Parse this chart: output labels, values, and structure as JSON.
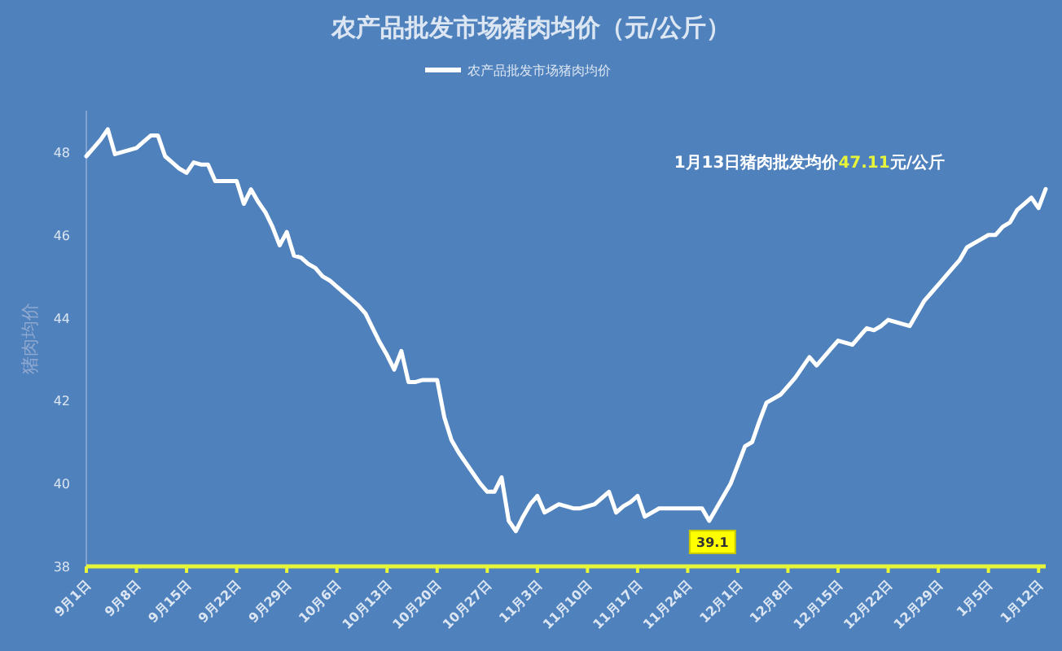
{
  "chart_data": {
    "type": "line",
    "title": "农产品批发市场猪肉均价（元/公斤）",
    "ylabel": "猪肉均价",
    "legend": "top",
    "categories": [
      "9月1日",
      null,
      null,
      null,
      null,
      null,
      null,
      "9月8日",
      null,
      null,
      null,
      null,
      null,
      null,
      "9月15日",
      null,
      null,
      null,
      null,
      null,
      null,
      "9月22日",
      null,
      null,
      null,
      null,
      null,
      null,
      "9月29日",
      null,
      null,
      null,
      null,
      null,
      null,
      "10月6日",
      null,
      null,
      null,
      null,
      null,
      null,
      "10月13日",
      null,
      null,
      null,
      null,
      null,
      null,
      "10月20日",
      null,
      null,
      null,
      null,
      null,
      null,
      "10月27日",
      null,
      null,
      null,
      null,
      null,
      null,
      "11月3日",
      null,
      null,
      null,
      null,
      null,
      null,
      "11月10日",
      null,
      null,
      null,
      null,
      null,
      null,
      "11月17日",
      null,
      null,
      null,
      null,
      null,
      null,
      "11月24日",
      null,
      null,
      null,
      null,
      null,
      null,
      "12月1日",
      null,
      null,
      null,
      null,
      null,
      null,
      "12月8日",
      null,
      null,
      null,
      null,
      null,
      null,
      "12月15日",
      null,
      null,
      null,
      null,
      null,
      null,
      "12月22日",
      null,
      null,
      null,
      null,
      null,
      null,
      "12月29日",
      null,
      null,
      null,
      null,
      null,
      null,
      "1月5日",
      null,
      null,
      null,
      null,
      null,
      null,
      "1月12日",
      null
    ],
    "series": [
      {
        "name": "农产品批发市场猪肉均价",
        "color": "#ffffff",
        "values": [
          47.9,
          48.1,
          48.3,
          48.55,
          47.95,
          48.0,
          48.05,
          48.1,
          48.25,
          48.4,
          48.4,
          47.9,
          47.75,
          47.6,
          47.5,
          47.75,
          47.7,
          47.7,
          47.3,
          47.3,
          47.3,
          47.3,
          46.75,
          47.1,
          46.8,
          46.55,
          46.2,
          45.75,
          46.07,
          45.5,
          45.45,
          45.3,
          45.2,
          45.0,
          44.9,
          44.75,
          44.6,
          44.45,
          44.3,
          44.1,
          43.75,
          43.4,
          43.1,
          42.75,
          43.2,
          42.45,
          42.45,
          42.5,
          42.5,
          42.5,
          41.6,
          41.05,
          40.75,
          40.5,
          40.25,
          40.0,
          39.8,
          39.8,
          40.15,
          39.1,
          38.85,
          39.2,
          39.5,
          39.7,
          39.3,
          39.4,
          39.5,
          39.45,
          39.4,
          39.4,
          39.45,
          39.5,
          39.65,
          39.8,
          39.3,
          39.45,
          39.55,
          39.7,
          39.2,
          39.3,
          39.4,
          39.4,
          39.4,
          39.4,
          39.4,
          39.4,
          39.4,
          39.1,
          39.4,
          39.7,
          40.0,
          40.45,
          40.9,
          41.0,
          41.5,
          41.95,
          42.05,
          42.15,
          42.35,
          42.55,
          42.8,
          43.05,
          42.85,
          43.05,
          43.25,
          43.45,
          43.4,
          43.35,
          43.55,
          43.75,
          43.7,
          43.8,
          43.95,
          43.9,
          43.85,
          43.8,
          44.1,
          44.4,
          44.6,
          44.8,
          45.0,
          45.2,
          45.4,
          45.7,
          45.8,
          45.9,
          46.0,
          46.0,
          46.2,
          46.3,
          46.6,
          46.75,
          46.9,
          46.65,
          47.11
        ],
        "value_labels": [
          null,
          null,
          null,
          null,
          null,
          null,
          null,
          null,
          null,
          null,
          null,
          null,
          null,
          null,
          null,
          null,
          null,
          null,
          null,
          null,
          null,
          null,
          null,
          null,
          null,
          null,
          null,
          null,
          null,
          null,
          null,
          null,
          null,
          null,
          null,
          null,
          null,
          null,
          null,
          null,
          null,
          null,
          null,
          null,
          null,
          null,
          null,
          null,
          null,
          null,
          null,
          null,
          null,
          null,
          null,
          null,
          null,
          null,
          null,
          null,
          null,
          null,
          null,
          null,
          null,
          null,
          null,
          null,
          null,
          null,
          null,
          null,
          null,
          null,
          null,
          null,
          null,
          null,
          null,
          null,
          null,
          null,
          null,
          null,
          null,
          null,
          null,
          "39.1",
          null,
          null,
          null,
          null,
          null,
          null,
          null,
          null,
          null,
          null,
          null,
          null,
          null,
          null,
          null,
          null,
          null,
          null,
          null,
          null,
          null,
          null,
          null,
          null,
          null,
          null,
          null,
          null,
          null,
          null,
          null,
          null,
          null,
          null,
          null,
          null,
          null,
          null,
          null,
          null,
          null,
          null,
          null,
          null,
          null,
          null,
          null
        ]
      }
    ],
    "ylim": [
      38,
      49
    ],
    "yticks": [
      38,
      40,
      42,
      44,
      46,
      48
    ],
    "annotations": [
      "1月13日猪肉批发均价47.11元/公斤"
    ]
  }
}
